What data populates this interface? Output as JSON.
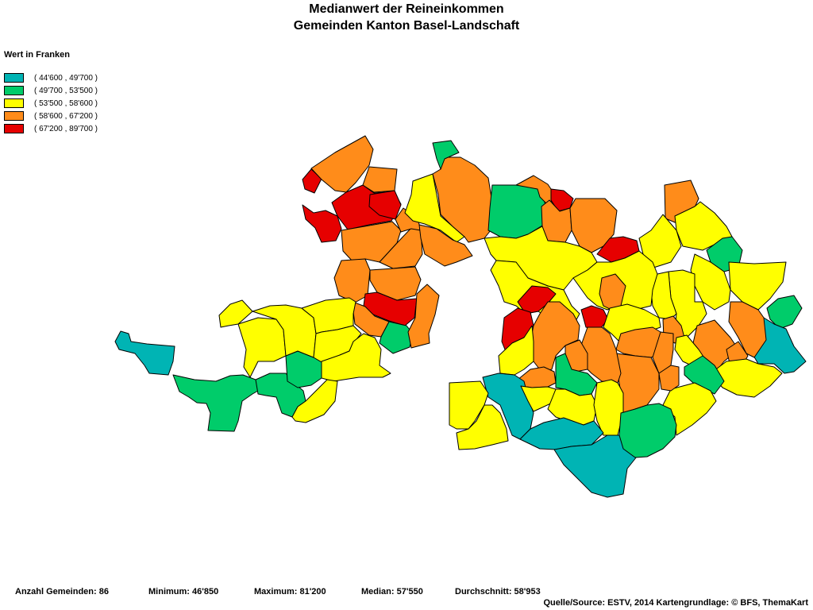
{
  "title": {
    "line1": "Medianwert der Reineinkommen",
    "line2": "Gemeinden Kanton Basel-Landschaft"
  },
  "legend": {
    "title": "Wert in Franken",
    "classes": [
      {
        "label": "( 44'600 , 49'700 )",
        "color": "#00b4b4"
      },
      {
        "label": "( 49'700 , 53'500 )",
        "color": "#00cc6a"
      },
      {
        "label": "( 53'500 , 58'600 )",
        "color": "#ffff00"
      },
      {
        "label": "( 58'600 , 67'200 )",
        "color": "#ff8c1a"
      },
      {
        "label": "( 67'200 , 89'700 )",
        "color": "#e60000"
      }
    ]
  },
  "stats": {
    "count": "Anzahl Gemeinden: 86",
    "minimum": "Minimum: 46'850",
    "maximum": "Maximum: 81'200",
    "median": "Median: 57'550",
    "average": "Durchschnitt: 58'953"
  },
  "source": "Quelle/Source: ESTV, 2014 Kartengrundlage: © BFS, ThemaKart"
}
